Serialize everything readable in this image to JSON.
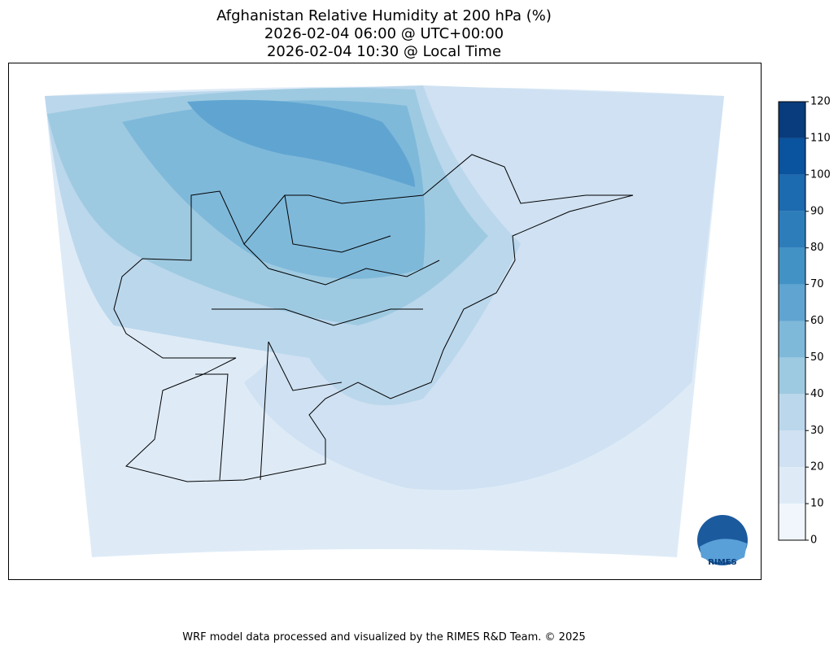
{
  "title": [
    "Afghanistan Relative Humidity at 200 hPa (%)",
    "2026-02-04 06:00 @ UTC+00:00",
    "2026-02-04 10:30 @ Local Time"
  ],
  "colorbar": {
    "range": [
      0,
      120
    ],
    "ticks": [
      0,
      10,
      20,
      30,
      40,
      50,
      60,
      70,
      80,
      90,
      100,
      110,
      120
    ],
    "colors": [
      "#f0f6fc",
      "#deebf7",
      "#cfe1f2",
      "#bbd7ec",
      "#9ecae1",
      "#7fb9da",
      "#60a5d1",
      "#4292c6",
      "#2d7dbb",
      "#1c6aaf",
      "#0a539e",
      "#083c7d"
    ]
  },
  "logo_text": "RIMES",
  "footer": "WRF model data processed and visualized by the RIMES R&D Team. © 2025"
}
